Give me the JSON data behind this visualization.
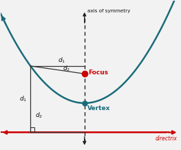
{
  "bg_color": "#f2f2f2",
  "parabola_color": "#1a6b7a",
  "directrix_color": "#cc0000",
  "axis_color": "#222222",
  "focus_color": "#cc0000",
  "vertex_color": "#1a6b7a",
  "line_color": "#333333",
  "rect_color": "#333333",
  "text_color_black": "#111111",
  "text_color_red": "#cc0000",
  "text_color_teal": "#1a6b7a",
  "focus_x": 0,
  "focus_y": 0.6,
  "vertex_x": 0,
  "vertex_y": 0,
  "p": 0.6,
  "directrix_y": -0.6,
  "point_x": -1.35,
  "xlim": [
    -2.1,
    2.4
  ],
  "ylim": [
    -0.95,
    2.1
  ]
}
